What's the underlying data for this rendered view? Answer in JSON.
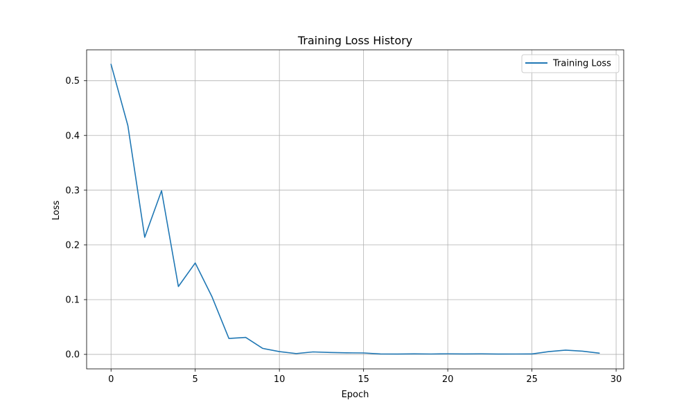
{
  "chart_data": {
    "type": "line",
    "title": "Training Loss History",
    "xlabel": "Epoch",
    "ylabel": "Loss",
    "xlim": [
      -1.45,
      30.45
    ],
    "ylim": [
      -0.0265,
      0.5565
    ],
    "xticks": [
      0,
      5,
      10,
      15,
      20,
      25,
      30
    ],
    "xtick_labels": [
      "0",
      "5",
      "10",
      "15",
      "20",
      "25",
      "30"
    ],
    "yticks": [
      0.0,
      0.1,
      0.2,
      0.3,
      0.4,
      0.5
    ],
    "ytick_labels": [
      "0.0",
      "0.1",
      "0.2",
      "0.3",
      "0.4",
      "0.5"
    ],
    "grid": true,
    "legend_position": "top-right",
    "series": [
      {
        "name": "Training Loss",
        "color": "#1f77b4",
        "x": [
          0,
          1,
          2,
          3,
          4,
          5,
          6,
          7,
          8,
          9,
          10,
          11,
          12,
          13,
          14,
          15,
          16,
          17,
          18,
          19,
          20,
          21,
          22,
          23,
          24,
          25,
          26,
          27,
          28,
          29
        ],
        "y": [
          0.53,
          0.418,
          0.214,
          0.299,
          0.124,
          0.167,
          0.105,
          0.029,
          0.031,
          0.011,
          0.005,
          0.0015,
          0.0045,
          0.0035,
          0.0028,
          0.0026,
          0.0008,
          0.0006,
          0.0009,
          0.0007,
          0.001,
          0.0008,
          0.001,
          0.0006,
          0.0007,
          0.0008,
          0.005,
          0.0077,
          0.0058,
          0.0022
        ]
      }
    ]
  }
}
